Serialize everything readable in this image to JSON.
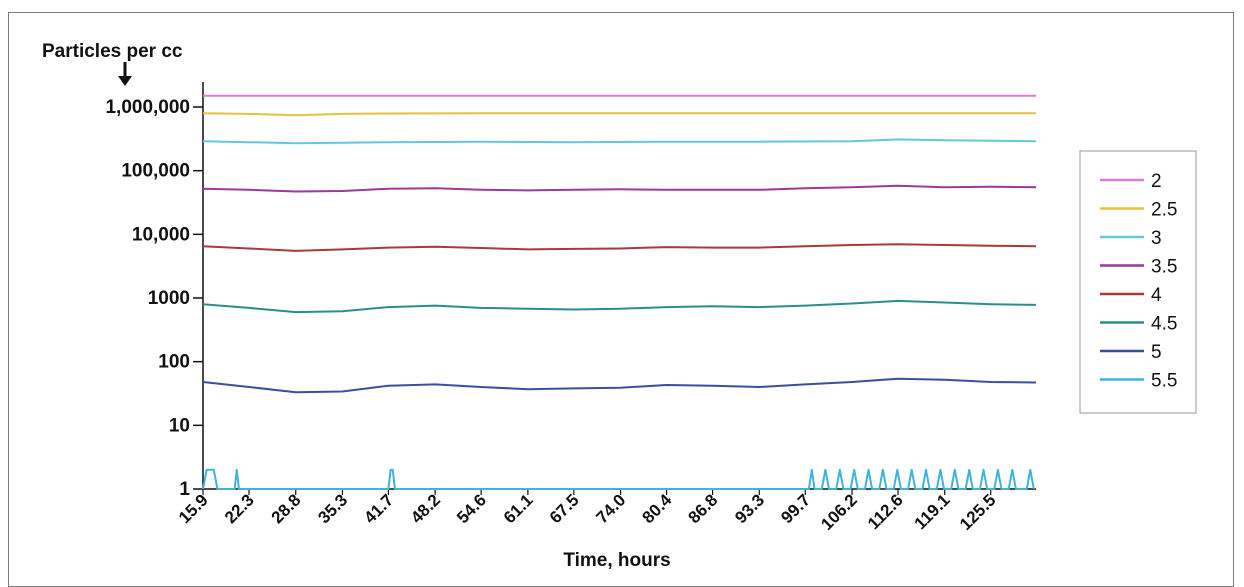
{
  "chart_data": {
    "type": "line",
    "title": "",
    "ylabel": "Particles per cc",
    "xlabel": "Time, hours",
    "yscale": "log",
    "ylim": [
      1,
      1000000
    ],
    "y_ticks": [
      {
        "value": 1,
        "label": "1"
      },
      {
        "value": 10,
        "label": "10"
      },
      {
        "value": 100,
        "label": "100"
      },
      {
        "value": 1000,
        "label": "1000"
      },
      {
        "value": 10000,
        "label": "10,000"
      },
      {
        "value": 100000,
        "label": "100,000"
      },
      {
        "value": 1000000,
        "label": "1,000,000"
      }
    ],
    "xlim": [
      15.9,
      131.8
    ],
    "x_ticks": [
      "15.9",
      "22.3",
      "28.8",
      "35.3",
      "41.7",
      "48.2",
      "54.6",
      "61.1",
      "67.5",
      "74.0",
      "80.4",
      "86.8",
      "93.3",
      "99.7",
      "106.2",
      "112.6",
      "119.1",
      "125.5"
    ],
    "x_tick_values": [
      15.9,
      22.3,
      28.8,
      35.3,
      41.7,
      48.2,
      54.6,
      61.1,
      67.5,
      74.0,
      80.4,
      86.8,
      93.3,
      99.7,
      106.2,
      112.6,
      119.1,
      125.5
    ],
    "legend_position": "right",
    "grid": false,
    "series": [
      {
        "name": "2",
        "color": "#d67fd0",
        "x": [
          15.9,
          131.8
        ],
        "y": [
          1500000,
          1500000
        ]
      },
      {
        "name": "2.5",
        "color": "#e8c13a",
        "x": [
          15.9,
          22.3,
          28.8,
          35.3,
          41.7,
          54.6,
          67.5,
          80.4,
          93.3,
          106.2,
          119.1,
          131.8
        ],
        "y": [
          800000,
          780000,
          740000,
          780000,
          790000,
          800000,
          800000,
          800000,
          800000,
          800000,
          800000,
          800000
        ]
      },
      {
        "name": "3",
        "color": "#64c6e0",
        "x": [
          15.9,
          22.3,
          28.8,
          35.3,
          41.7,
          54.6,
          67.5,
          80.4,
          93.3,
          106.2,
          112.6,
          119.1,
          131.8
        ],
        "y": [
          290000,
          280000,
          270000,
          275000,
          280000,
          285000,
          280000,
          285000,
          285000,
          290000,
          310000,
          300000,
          290000
        ]
      },
      {
        "name": "3.5",
        "color": "#9a3a9a",
        "x": [
          15.9,
          22.3,
          28.8,
          35.3,
          41.7,
          48.2,
          54.6,
          61.1,
          67.5,
          74.0,
          80.4,
          86.8,
          93.3,
          99.7,
          106.2,
          112.6,
          119.1,
          125.5,
          131.8
        ],
        "y": [
          52000,
          50000,
          47000,
          48000,
          52000,
          53000,
          50000,
          49000,
          50000,
          51000,
          50000,
          50000,
          50000,
          53000,
          55000,
          58000,
          55000,
          56000,
          55000
        ]
      },
      {
        "name": "4",
        "color": "#a83a3a",
        "x": [
          15.9,
          22.3,
          28.8,
          35.3,
          41.7,
          48.2,
          54.6,
          61.1,
          67.5,
          74.0,
          80.4,
          86.8,
          93.3,
          99.7,
          106.2,
          112.6,
          119.1,
          125.5,
          131.8
        ],
        "y": [
          6500,
          6000,
          5500,
          5800,
          6200,
          6400,
          6100,
          5800,
          5900,
          6000,
          6300,
          6200,
          6200,
          6500,
          6800,
          7000,
          6800,
          6600,
          6500
        ]
      },
      {
        "name": "4.5",
        "color": "#2a8f8a",
        "x": [
          15.9,
          22.3,
          28.8,
          35.3,
          41.7,
          48.2,
          54.6,
          61.1,
          67.5,
          74.0,
          80.4,
          86.8,
          93.3,
          99.7,
          106.2,
          112.6,
          119.1,
          125.5,
          131.8
        ],
        "y": [
          800,
          700,
          600,
          620,
          720,
          760,
          700,
          680,
          660,
          680,
          720,
          740,
          720,
          760,
          820,
          900,
          850,
          800,
          780
        ]
      },
      {
        "name": "5",
        "color": "#3a4f9e",
        "x": [
          15.9,
          22.3,
          28.8,
          35.3,
          41.7,
          48.2,
          54.6,
          61.1,
          67.5,
          74.0,
          80.4,
          86.8,
          93.3,
          99.7,
          106.2,
          112.6,
          119.1,
          125.5,
          131.8
        ],
        "y": [
          48,
          40,
          33,
          34,
          42,
          44,
          40,
          37,
          38,
          39,
          43,
          42,
          40,
          44,
          48,
          54,
          52,
          48,
          47
        ]
      },
      {
        "name": "5.5",
        "color": "#3fb3e0",
        "x": [
          15.9,
          16.4,
          16.8,
          17.4,
          17.9,
          18.4,
          20.3,
          20.6,
          20.9,
          21.3,
          41.7,
          42.0,
          42.3,
          42.6,
          100.2,
          100.6,
          101.0,
          102.0,
          102.5,
          103.0,
          104.0,
          104.5,
          105.0,
          106.0,
          106.5,
          107.0,
          108.0,
          108.5,
          109.0,
          110.0,
          110.5,
          111.0,
          112.0,
          112.5,
          113.0,
          114.0,
          114.5,
          115.0,
          116.0,
          116.5,
          117.0,
          118.0,
          118.5,
          119.0,
          120.0,
          120.5,
          121.0,
          122.0,
          122.5,
          123.0,
          124.0,
          124.5,
          125.0,
          126.0,
          126.5,
          127.0,
          128.0,
          128.5,
          129.0,
          130.5,
          131.0,
          131.5
        ],
        "y": [
          1,
          2,
          2,
          2,
          1,
          1,
          1,
          2,
          1,
          1,
          1,
          2,
          2,
          1,
          1,
          2,
          1,
          1,
          2,
          1,
          1,
          2,
          1,
          1,
          2,
          1,
          1,
          2,
          1,
          1,
          2,
          1,
          1,
          2,
          1,
          1,
          2,
          1,
          1,
          2,
          1,
          1,
          2,
          1,
          1,
          2,
          1,
          1,
          2,
          1,
          1,
          2,
          1,
          1,
          2,
          1,
          1,
          2,
          1,
          1,
          2,
          1
        ]
      }
    ]
  }
}
